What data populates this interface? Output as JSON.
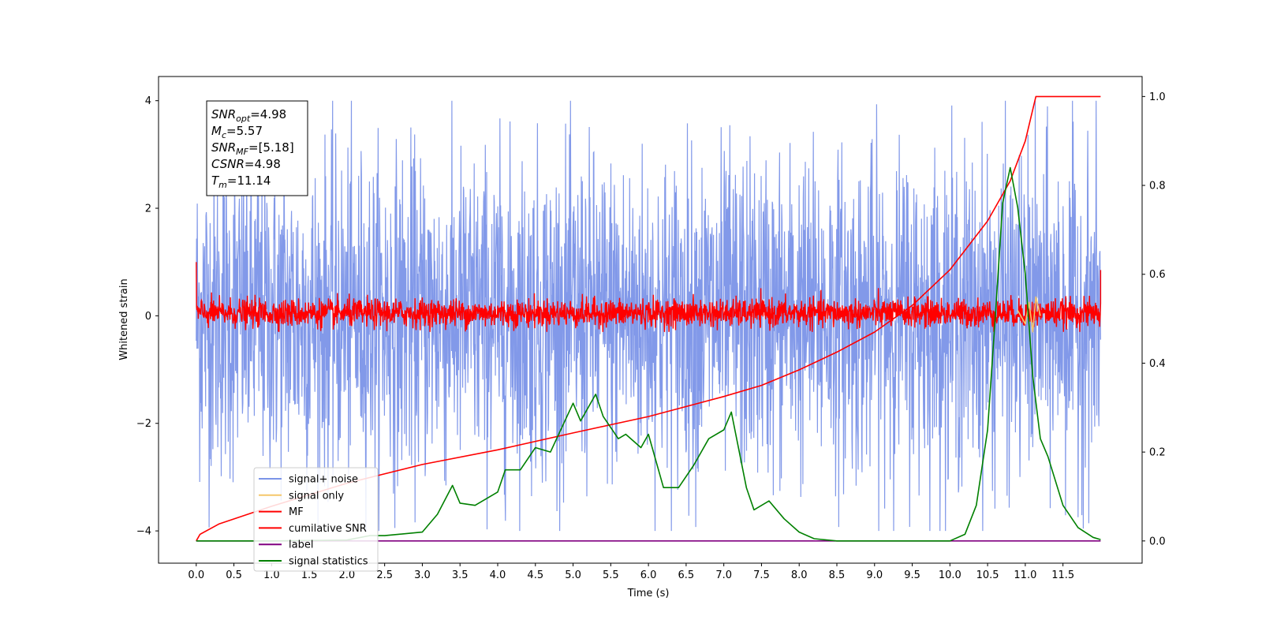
{
  "chart_data": {
    "type": "line",
    "xlabel": "Time (s)",
    "ylabel": "Whitened strain",
    "xlim": [
      -0.5,
      12.55
    ],
    "ylim_left": [
      -4.6,
      4.45
    ],
    "ylim_right": [
      -0.05,
      1.045
    ],
    "x_ticks": [
      "0.0",
      "0.5",
      "1.0",
      "1.5",
      "2.0",
      "2.5",
      "3.0",
      "3.5",
      "4.0",
      "4.5",
      "5.0",
      "5.5",
      "6.0",
      "6.5",
      "7.0",
      "7.5",
      "8.0",
      "8.5",
      "9.0",
      "9.5",
      "10.0",
      "10.5",
      "11.0",
      "11.5"
    ],
    "y_ticks_left": [
      "4",
      "2",
      "0",
      "−2",
      "−4"
    ],
    "y_ticks_right": [
      "1.0",
      "0.8",
      "0.6",
      "0.4",
      "0.2",
      "0.0"
    ],
    "legend": {
      "placement": "lower-left",
      "entries": [
        {
          "label": "signal+ noise",
          "color": "#7b94e8"
        },
        {
          "label": "signal only",
          "color": "#f5c76a"
        },
        {
          "label": "MF",
          "color": "#ff0000"
        },
        {
          "label": "cumilative SNR",
          "color": "#ff0000"
        },
        {
          "label": "label",
          "color": "#800080"
        },
        {
          "label": "signal statistics",
          "color": "#008000"
        }
      ]
    },
    "annotation": {
      "lines": [
        {
          "sym": "SNR",
          "sub": "opt",
          "val": "=4.98"
        },
        {
          "sym": "M",
          "sub": "c",
          "val": "=5.57"
        },
        {
          "sym": "SNR",
          "sub": "MF",
          "val": "=[5.18]"
        },
        {
          "sym": "CSNR",
          "sub": "",
          "val": "=4.98"
        },
        {
          "sym": "T",
          "sub": "m",
          "val": "=11.14"
        }
      ]
    },
    "series": [
      {
        "name": "signal+ noise",
        "axis": "left",
        "color": "#7b94e8",
        "description_x": [
          0,
          12.0
        ],
        "envelope": {
          "typical_amplitude": 2.0,
          "max": 4.0,
          "min": -4.0
        }
      },
      {
        "name": "signal only",
        "axis": "left",
        "color": "#f5c76a",
        "x": [
          10.9,
          11.0,
          11.05,
          11.1,
          11.14,
          11.2
        ],
        "y": [
          0.1,
          -0.15,
          0.25,
          -0.3,
          0.35,
          0.0
        ]
      },
      {
        "name": "MF",
        "axis": "left",
        "color": "#ff0000",
        "description_x": [
          0,
          12.0
        ],
        "envelope": {
          "typical_amplitude": 0.3,
          "max": 0.8,
          "min": -0.3
        }
      },
      {
        "name": "cumilative SNR",
        "axis": "right",
        "color": "#ff0000",
        "x": [
          0.0,
          0.05,
          0.3,
          1.0,
          2.0,
          3.0,
          4.0,
          5.0,
          6.0,
          7.0,
          7.5,
          8.0,
          8.5,
          9.0,
          9.5,
          10.0,
          10.5,
          10.8,
          11.0,
          11.14,
          11.5,
          12.0
        ],
        "y": [
          0.0,
          0.015,
          0.038,
          0.078,
          0.13,
          0.172,
          0.205,
          0.243,
          0.28,
          0.325,
          0.35,
          0.385,
          0.425,
          0.47,
          0.53,
          0.61,
          0.72,
          0.81,
          0.9,
          1.0,
          1.0,
          1.0
        ]
      },
      {
        "name": "label",
        "axis": "right",
        "color": "#800080",
        "x": [
          0.0,
          12.0
        ],
        "y": [
          0.0,
          0.0
        ]
      },
      {
        "name": "signal statistics",
        "axis": "right",
        "color": "#008000",
        "x": [
          0.0,
          1.0,
          2.0,
          2.3,
          2.5,
          3.0,
          3.2,
          3.4,
          3.5,
          3.7,
          4.0,
          4.1,
          4.3,
          4.5,
          4.7,
          5.0,
          5.1,
          5.3,
          5.4,
          5.6,
          5.7,
          5.9,
          6.0,
          6.2,
          6.4,
          6.6,
          6.8,
          7.0,
          7.1,
          7.3,
          7.4,
          7.6,
          7.8,
          8.0,
          8.2,
          8.5,
          9.0,
          10.0,
          10.2,
          10.35,
          10.5,
          10.6,
          10.7,
          10.8,
          10.9,
          11.0,
          11.1,
          11.2,
          11.3,
          11.5,
          11.7,
          11.9,
          12.0
        ],
        "y": [
          0.0,
          0.0,
          0.002,
          0.012,
          0.012,
          0.02,
          0.06,
          0.125,
          0.085,
          0.08,
          0.11,
          0.16,
          0.16,
          0.21,
          0.2,
          0.31,
          0.27,
          0.33,
          0.28,
          0.23,
          0.24,
          0.21,
          0.24,
          0.12,
          0.12,
          0.17,
          0.23,
          0.25,
          0.29,
          0.12,
          0.07,
          0.09,
          0.05,
          0.02,
          0.005,
          0.0,
          0.0,
          0.0,
          0.015,
          0.08,
          0.25,
          0.5,
          0.76,
          0.84,
          0.75,
          0.6,
          0.37,
          0.23,
          0.19,
          0.08,
          0.03,
          0.008,
          0.003
        ]
      }
    ]
  }
}
